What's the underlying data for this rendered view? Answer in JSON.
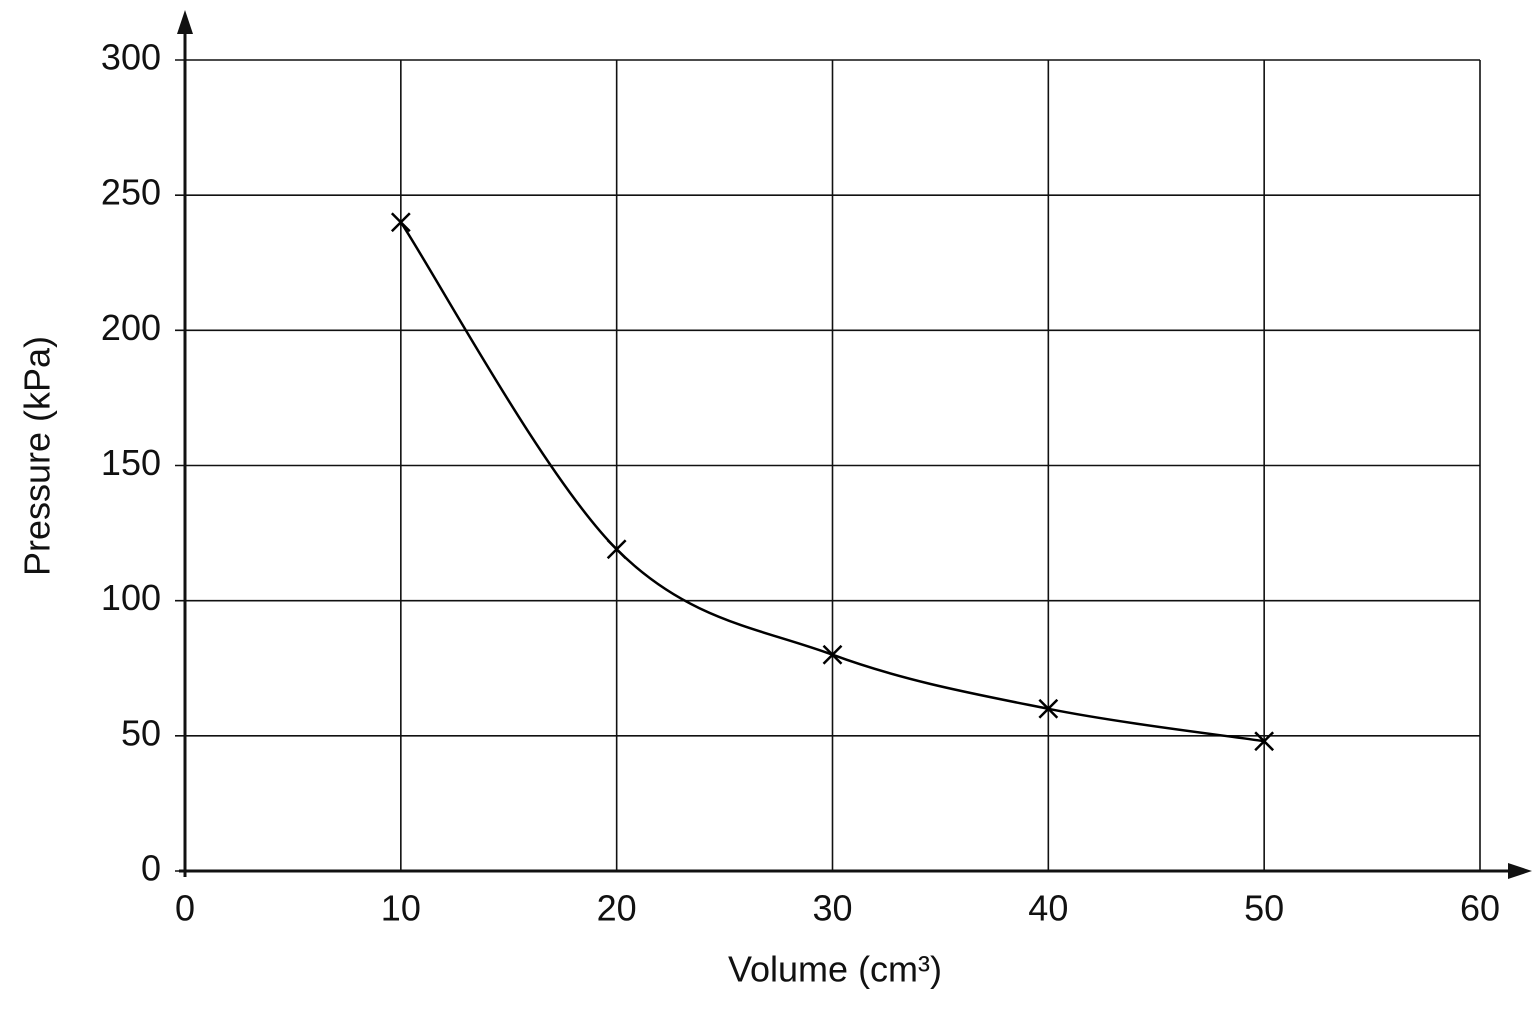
{
  "chart_data": {
    "type": "line",
    "x_label": "Volume (cm³)",
    "y_label": "Pressure (kPa)",
    "x": [
      10,
      20,
      30,
      40,
      50
    ],
    "values": [
      240,
      119,
      80,
      60,
      48
    ],
    "color": "#000000",
    "marker": "x",
    "smooth": true,
    "xlim": [
      0,
      60
    ],
    "xticks": [
      0,
      10,
      20,
      30,
      40,
      50,
      60
    ],
    "ylim": [
      0,
      300
    ],
    "yticks": [
      0,
      50,
      100,
      150,
      200,
      250,
      300
    ],
    "grid": true
  }
}
